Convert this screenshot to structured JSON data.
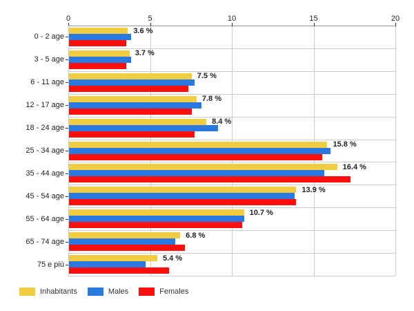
{
  "chart_data": {
    "type": "bar",
    "orientation": "horizontal",
    "categories": [
      "0 - 2 age",
      "3 - 5 age",
      "6 - 11 age",
      "12 - 17 age",
      "18 - 24 age",
      "25 - 34 age",
      "35 - 44 age",
      "45 - 54 age",
      "55 - 64 age",
      "65 - 74 age",
      "75 e più"
    ],
    "series": [
      {
        "name": "Inhabitants",
        "color": "#F1CD44",
        "values": [
          3.6,
          3.7,
          7.5,
          7.8,
          8.4,
          15.8,
          16.4,
          13.9,
          10.7,
          6.8,
          5.4
        ]
      },
      {
        "name": "Males",
        "color": "#2A79E0",
        "values": [
          3.8,
          3.8,
          7.7,
          8.1,
          9.1,
          16.0,
          15.6,
          13.8,
          10.7,
          6.5,
          4.7
        ]
      },
      {
        "name": "Females",
        "color": "#FA0F0F",
        "values": [
          3.5,
          3.5,
          7.3,
          7.5,
          7.7,
          15.5,
          17.2,
          13.9,
          10.6,
          7.1,
          6.1
        ]
      }
    ],
    "bar_labels": [
      "3.6 %",
      "3.7 %",
      "7.5 %",
      "7.8 %",
      "8.4 %",
      "15.8 %",
      "16.4 %",
      "13.9 %",
      "10.7 %",
      "6.8 %",
      "5.4 %"
    ],
    "x_ticks": [
      "0",
      "5",
      "10",
      "15",
      "20"
    ],
    "x_tick_values": [
      0,
      5,
      10,
      15,
      20
    ],
    "xlim": [
      0,
      20
    ],
    "grid": true,
    "legend_position": "bottom-left",
    "colors": {
      "gridline": "#cccccc",
      "axis_line": "#999999",
      "tick": "#333333",
      "text": "#222222"
    }
  }
}
